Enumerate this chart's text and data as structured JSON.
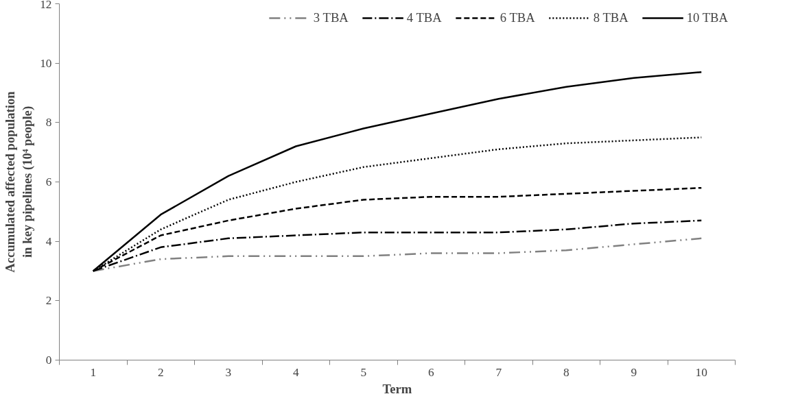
{
  "chart_data": {
    "type": "line",
    "xlabel": "Term",
    "ylabel": "Accumulated affected population in key pipelines (10⁴ people)",
    "categories": [
      "1",
      "2",
      "3",
      "4",
      "5",
      "6",
      "7",
      "8",
      "9",
      "10"
    ],
    "ylim": [
      0,
      12
    ],
    "yticks": [
      0,
      2,
      4,
      6,
      8,
      10,
      12
    ],
    "grid": false,
    "legend": "top",
    "marker": "none",
    "series": [
      {
        "name": "3 TBA",
        "color": "#808080",
        "line_style": "dashdotdot",
        "values": [
          3,
          3.4,
          3.5,
          3.5,
          3.5,
          3.6,
          3.6,
          3.7,
          3.9,
          4.1
        ]
      },
      {
        "name": "4 TBA",
        "color": "#000000",
        "line_style": "dashdot",
        "values": [
          3,
          3.8,
          4.1,
          4.2,
          4.3,
          4.3,
          4.3,
          4.4,
          4.6,
          4.7
        ]
      },
      {
        "name": "6 TBA",
        "color": "#000000",
        "line_style": "dashed",
        "values": [
          3,
          4.2,
          4.7,
          5.1,
          5.4,
          5.5,
          5.5,
          5.6,
          5.7,
          5.8
        ]
      },
      {
        "name": "8 TBA",
        "color": "#000000",
        "line_style": "dotted",
        "values": [
          3,
          4.4,
          5.4,
          6,
          6.5,
          6.8,
          7.1,
          7.3,
          7.4,
          7.5
        ]
      },
      {
        "name": "10 TBA",
        "color": "#000000",
        "line_style": "solid",
        "values": [
          3,
          4.9,
          6.2,
          7.2,
          7.8,
          8.3,
          8.8,
          9.2,
          9.5,
          9.7
        ]
      }
    ]
  }
}
